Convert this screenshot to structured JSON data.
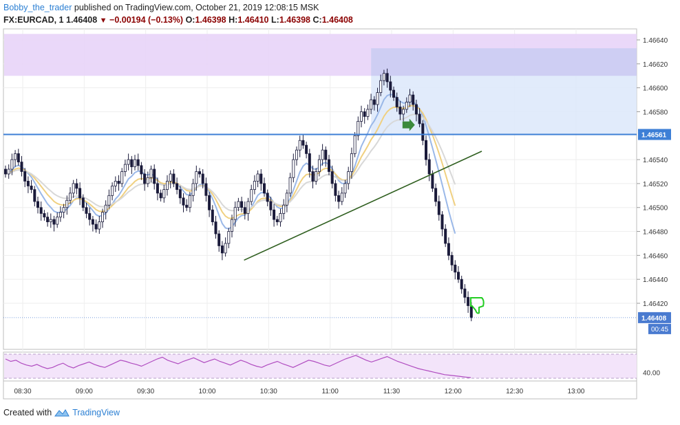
{
  "header": {
    "author": "Bobby_the_trader",
    "published_text": "published on TradingView.com, October 21, 2019 12:08:15 MSK",
    "symbol": "FX:EURCAD, 1",
    "last": "1.46408",
    "change": "−0.00194 (−0.13%)",
    "o_label": "O:",
    "o_value": "1.46398",
    "h_label": "H:",
    "h_value": "1.46410",
    "l_label": "L:",
    "l_value": "1.46398",
    "c_label": "C:",
    "c_value": "1.46408"
  },
  "footer": {
    "created_with": "Created with",
    "brand": "TradingView"
  },
  "colors": {
    "candle_up": "#ffffff",
    "candle_down": "#1a1a3a",
    "candle_border": "#1a1a3a",
    "trendline": "#2e5e1e",
    "level_line": "#3d7fd6",
    "ema_blue": "#9ab8e8",
    "ema_orange": "#f0d080",
    "ema_grey": "#d8d8d8",
    "zone_purple": "#e8d4f8",
    "zone_blue": "#dce8fa",
    "rsi_line": "#b04cc0",
    "rsi_band": "#f3e4fa",
    "arrow_green": "#3c8a3c",
    "thumb_green": "#22cc22"
  },
  "chart_data": {
    "type": "candlestick",
    "y_axis": {
      "ticks": [
        "1.46640",
        "1.46620",
        "1.46600",
        "1.46580",
        "1.46540",
        "1.46520",
        "1.46500",
        "1.46480",
        "1.46460",
        "1.46440",
        "1.46420"
      ],
      "ylim": [
        1.46395,
        1.46645
      ]
    },
    "x_axis": {
      "ticks": [
        "08:30",
        "09:00",
        "09:30",
        "10:00",
        "10:30",
        "11:00",
        "11:30",
        "12:00",
        "12:30",
        "13:00"
      ]
    },
    "price_labels": [
      {
        "value": "1.46561",
        "role": "horizontal level"
      },
      {
        "value": "1.46408",
        "role": "last price"
      },
      {
        "value": "00:45",
        "role": "bar countdown"
      }
    ],
    "level_price": 1.46561,
    "last_price": 1.46408,
    "trendline": {
      "start": [
        "10:18",
        1.46456
      ],
      "end": [
        "12:14",
        1.46547
      ]
    },
    "zones": [
      {
        "name": "purple zone",
        "y_from": 1.4661,
        "y_to": 1.46645
      },
      {
        "name": "blue zone",
        "x_from": "11:20",
        "y_from": 1.46561,
        "y_to": 1.46633
      }
    ],
    "candles_close": [
      1.46528,
      1.46532,
      1.4654,
      1.46545,
      1.46538,
      1.4653,
      1.46522,
      1.46518,
      1.46515,
      1.46505,
      1.465,
      1.46495,
      1.46492,
      1.46488,
      1.4649,
      1.46486,
      1.46492,
      1.46496,
      1.465,
      1.46506,
      1.46512,
      1.4652,
      1.46516,
      1.46508,
      1.465,
      1.46495,
      1.4649,
      1.46486,
      1.46482,
      1.46488,
      1.46496,
      1.46502,
      1.4651,
      1.46518,
      1.46522,
      1.4652,
      1.4653,
      1.46536,
      1.4654,
      1.46534,
      1.4654,
      1.46535,
      1.46528,
      1.4652,
      1.46525,
      1.46532,
      1.4652,
      1.46512,
      1.46508,
      1.46515,
      1.46522,
      1.46528,
      1.4652,
      1.46515,
      1.46508,
      1.46502,
      1.465,
      1.4651,
      1.4652,
      1.4653,
      1.46528,
      1.4652,
      1.4651,
      1.46498,
      1.46488,
      1.46478,
      1.46468,
      1.46462,
      1.4647,
      1.4648,
      1.4649,
      1.465,
      1.46505,
      1.465,
      1.46495,
      1.46505,
      1.46515,
      1.46522,
      1.46528,
      1.4652,
      1.46512,
      1.46505,
      1.46498,
      1.4649,
      1.46488,
      1.46495,
      1.46502,
      1.46512,
      1.46525,
      1.4654,
      1.46548,
      1.46556,
      1.46552,
      1.46545,
      1.4653,
      1.46522,
      1.4653,
      1.4654,
      1.46548,
      1.4654,
      1.4653,
      1.4652,
      1.4651,
      1.46505,
      1.46512,
      1.4652,
      1.4653,
      1.46545,
      1.4656,
      1.46572,
      1.4658,
      1.46576,
      1.46582,
      1.4659,
      1.46586,
      1.46596,
      1.46606,
      1.46612,
      1.46605,
      1.46598,
      1.46592,
      1.46584,
      1.46578,
      1.46582,
      1.46588,
      1.46594,
      1.46586,
      1.46578,
      1.4657,
      1.46556,
      1.4654,
      1.46528,
      1.46516,
      1.46505,
      1.46494,
      1.46482,
      1.4647,
      1.4646,
      1.46452,
      1.46446,
      1.4644,
      1.46432,
      1.46425,
      1.46418,
      1.46408
    ],
    "ema_lines": [
      {
        "color_key": "ema_blue"
      },
      {
        "color_key": "ema_orange"
      },
      {
        "color_key": "ema_grey"
      }
    ],
    "rsi": {
      "tick": "40.00",
      "values": [
        62,
        58,
        60,
        55,
        52,
        50,
        53,
        49,
        46,
        48,
        52,
        55,
        50,
        47,
        51,
        54,
        57,
        53,
        50,
        48,
        52,
        56,
        60,
        58,
        55,
        53,
        50,
        54,
        58,
        62,
        65,
        60,
        57,
        54,
        58,
        61,
        64,
        60,
        56,
        59,
        62,
        58,
        55,
        52,
        56,
        60,
        57,
        53,
        50,
        48,
        52,
        55,
        58,
        54,
        51,
        48,
        52,
        56,
        60,
        58,
        55,
        52,
        50,
        54,
        58,
        62,
        65,
        68,
        64,
        60,
        57,
        60,
        63,
        66,
        62,
        58,
        55,
        52,
        49,
        46,
        44,
        42,
        40,
        38,
        36,
        35,
        34,
        33,
        32,
        31
      ]
    }
  }
}
